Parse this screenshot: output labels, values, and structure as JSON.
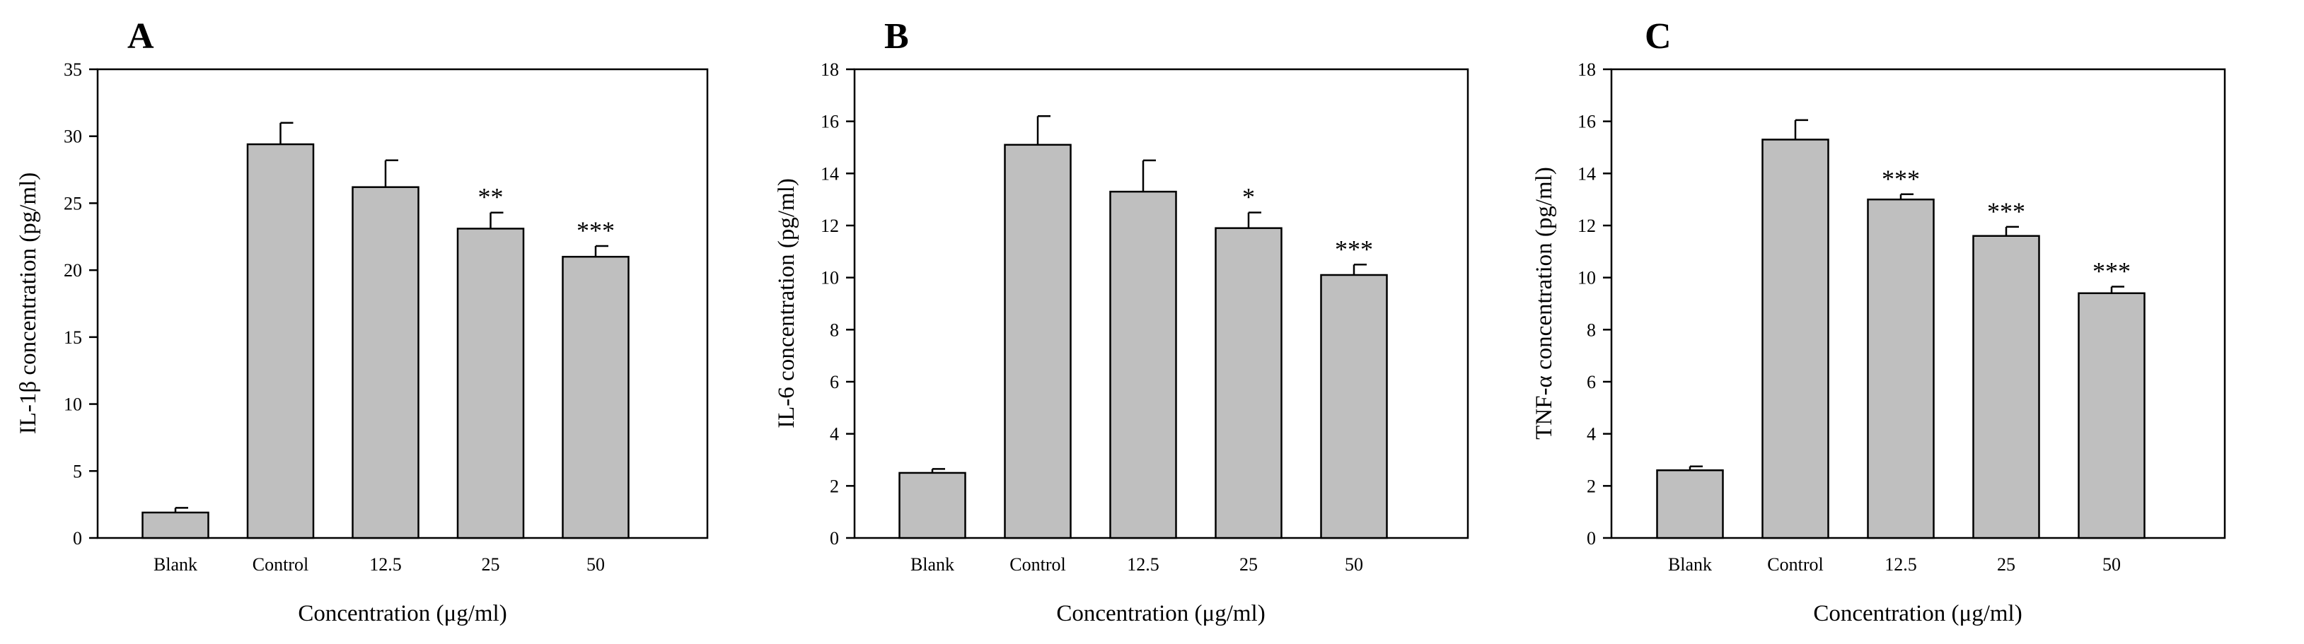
{
  "chart_data": [
    {
      "panel": "A",
      "type": "bar",
      "title": "",
      "xlabel": "Concentration (μg/ml)",
      "ylabel": "IL-1β concentration (pg/ml)",
      "categories": [
        "Blank",
        "Control",
        "12.5",
        "25",
        "50"
      ],
      "values": [
        1.9,
        29.4,
        26.2,
        23.1,
        21.0
      ],
      "errors": [
        0.35,
        1.6,
        2.0,
        1.2,
        0.8
      ],
      "significance": [
        "",
        "",
        "",
        "**",
        "***"
      ],
      "ylim": [
        0,
        35
      ],
      "yticks": [
        0,
        5,
        10,
        15,
        20,
        25,
        30,
        35
      ],
      "ytick_labels": [
        "0",
        "5",
        "10",
        "15",
        "20",
        "25",
        "30",
        "35"
      ],
      "grid": false
    },
    {
      "panel": "B",
      "type": "bar",
      "title": "",
      "xlabel": "Concentration (μg/ml)",
      "ylabel": "IL-6 concentration (pg/ml)",
      "categories": [
        "Blank",
        "Control",
        "12.5",
        "25",
        "50"
      ],
      "values": [
        2.5,
        15.1,
        13.3,
        11.9,
        10.1
      ],
      "errors": [
        0.15,
        1.1,
        1.2,
        0.6,
        0.4
      ],
      "significance": [
        "",
        "",
        "",
        "*",
        "***"
      ],
      "ylim": [
        0,
        18
      ],
      "yticks": [
        0,
        2,
        4,
        6,
        8,
        10,
        12,
        14,
        16,
        18
      ],
      "ytick_labels": [
        "0",
        "2",
        "4",
        "6",
        "8",
        "10",
        "12",
        "14",
        "16",
        "18"
      ],
      "grid": false
    },
    {
      "panel": "C",
      "type": "bar",
      "title": "",
      "xlabel": "Concentration (μg/ml)",
      "ylabel": "TNF-α concentration (pg/ml)",
      "categories": [
        "Blank",
        "Control",
        "12.5",
        "25",
        "50"
      ],
      "values": [
        2.6,
        15.3,
        13.0,
        11.6,
        9.4
      ],
      "errors": [
        0.15,
        0.75,
        0.2,
        0.35,
        0.25
      ],
      "significance": [
        "",
        "",
        "***",
        "***",
        "***"
      ],
      "ylim": [
        0,
        18
      ],
      "yticks": [
        0,
        2,
        4,
        6,
        8,
        10,
        12,
        14,
        16,
        18
      ],
      "ytick_labels": [
        "0",
        "2",
        "4",
        "6",
        "8",
        "10",
        "12",
        "14",
        "16",
        "18"
      ],
      "grid": false
    }
  ]
}
